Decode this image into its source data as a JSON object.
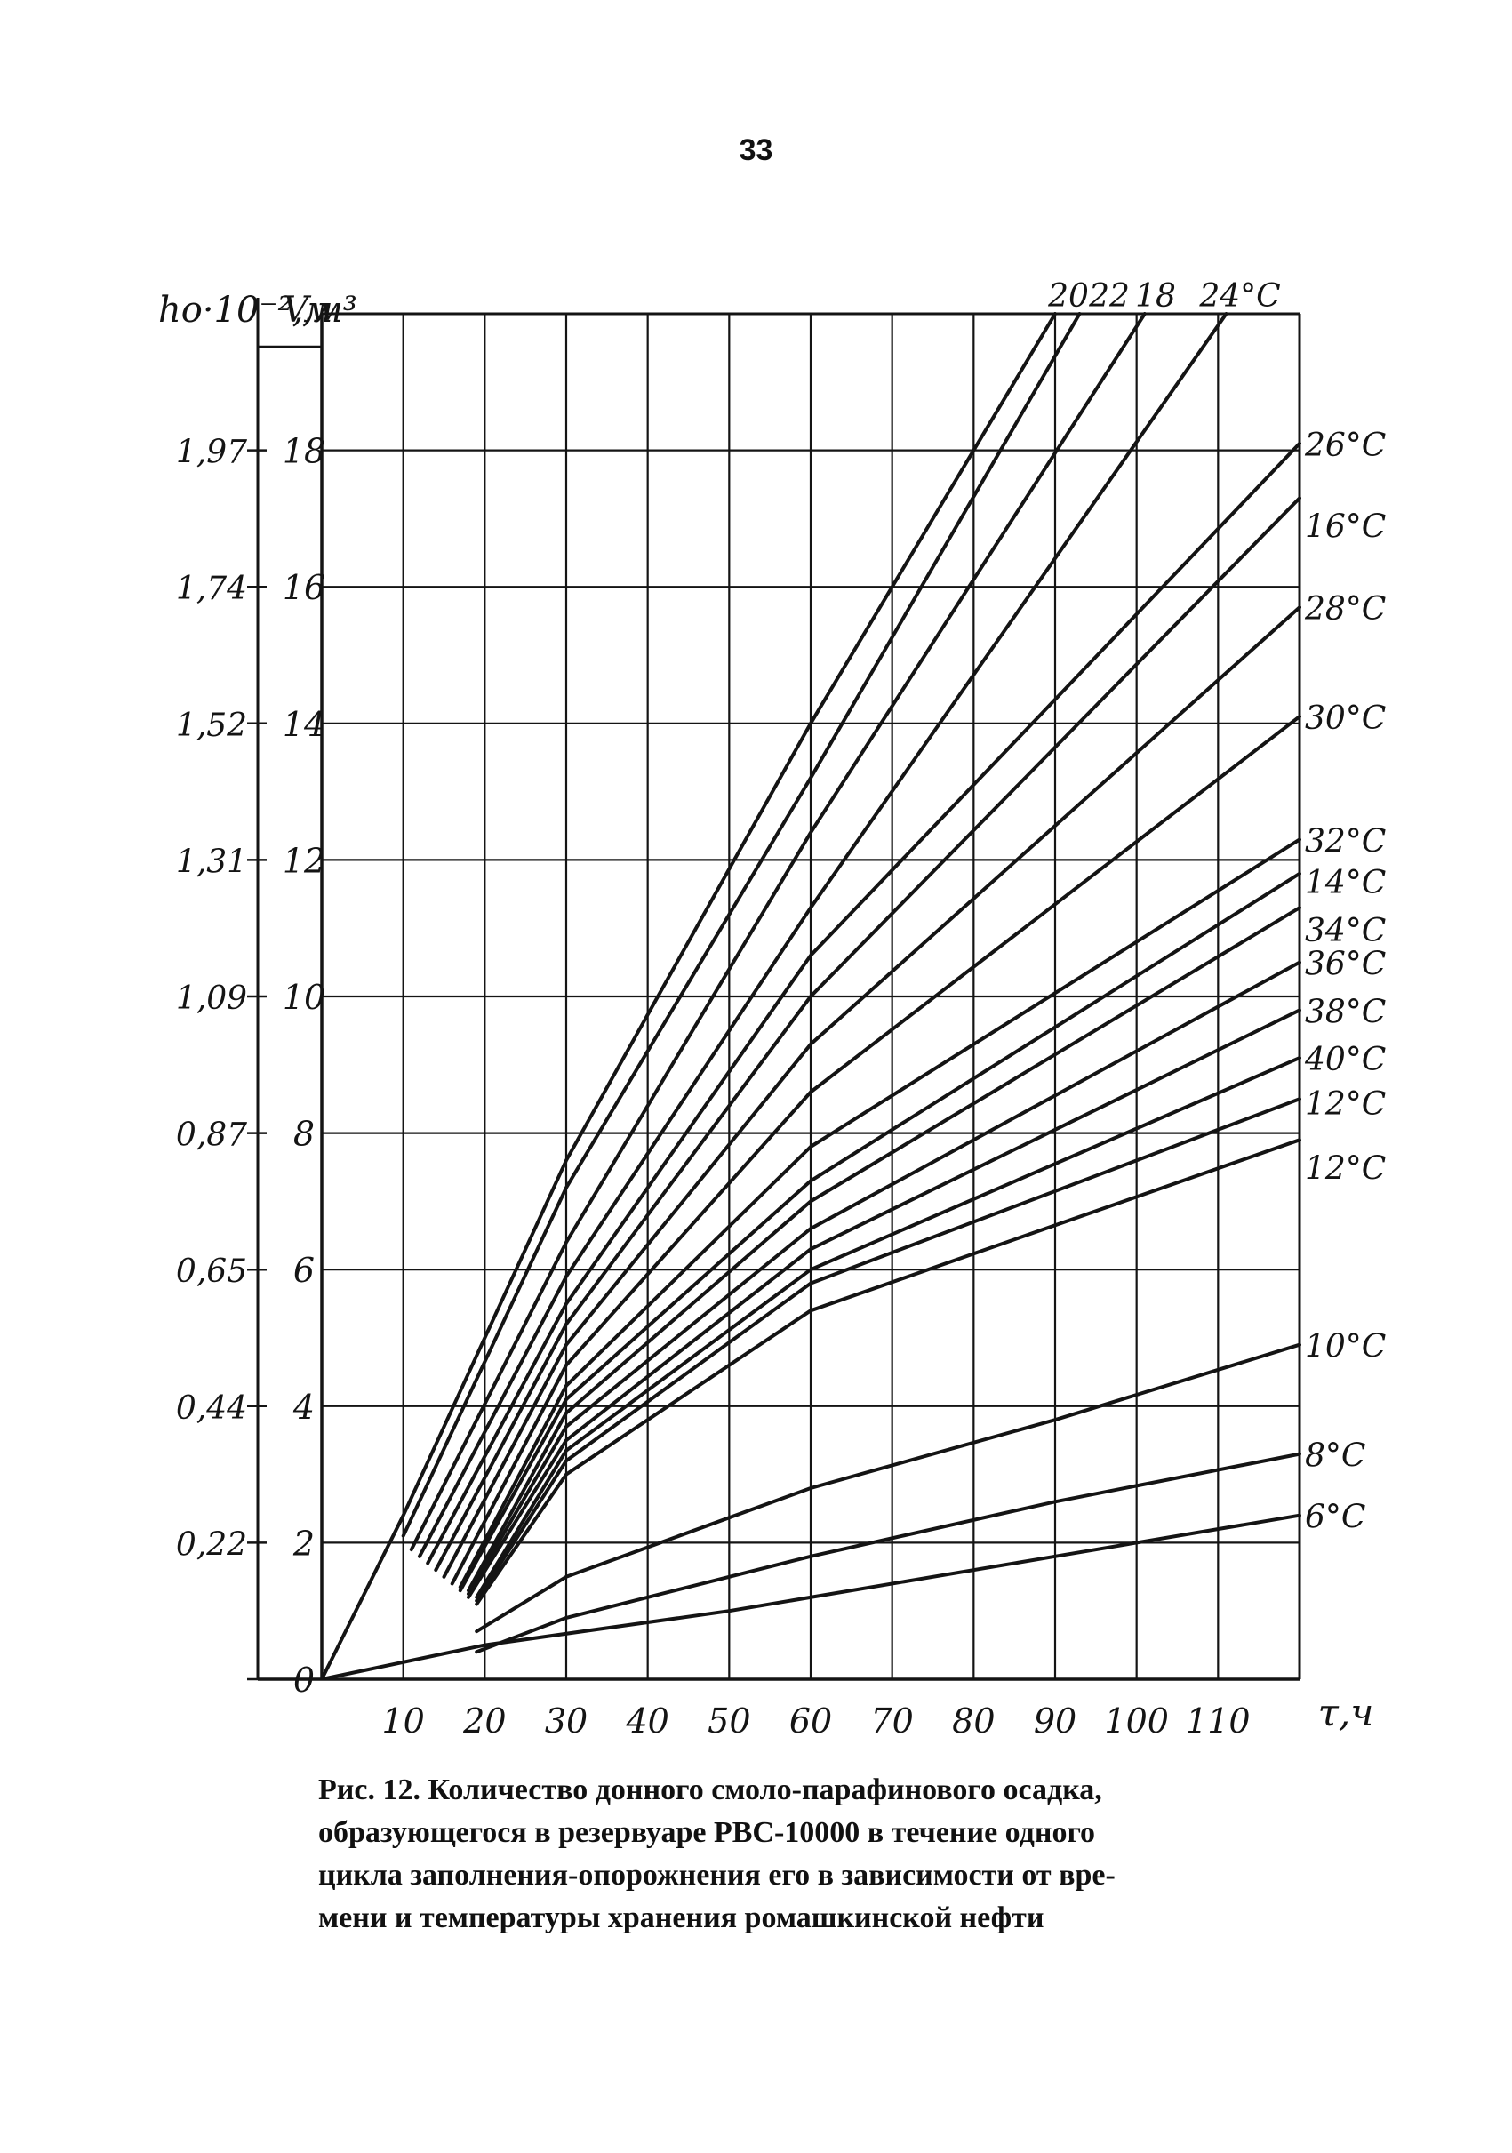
{
  "page_number": "33",
  "caption_lines": [
    "Рис. 12. Количество донного смоло-парафинового осадка,",
    "образующегося в резервуаре РВС-10000 в течение одного",
    "цикла заполнения-опорожнения его в зависимости от вре-",
    "мени и температуры хранения ромашкинской нефти"
  ],
  "chart_data": {
    "type": "line",
    "title": "",
    "xlabel": "τ,ч",
    "ylabel": "V,м³",
    "ylabel2": "hо·10⁻²,м",
    "xlim": [
      0,
      120
    ],
    "ylim": [
      0,
      20
    ],
    "grid": true,
    "x_ticks": [
      10,
      20,
      30,
      40,
      50,
      60,
      70,
      80,
      90,
      100,
      110
    ],
    "x_tick_labels": [
      "10",
      "20",
      "30",
      "40",
      "50",
      "60",
      "70",
      "80",
      "90",
      "100",
      "110"
    ],
    "y_ticks": [
      0,
      2,
      4,
      6,
      8,
      10,
      12,
      14,
      16,
      18
    ],
    "y_tick_labels": [
      "0",
      "2",
      "4",
      "6",
      "8",
      "10",
      "12",
      "14",
      "16",
      "18"
    ],
    "y2_tick_labels": [
      "",
      "0,22",
      "0,44",
      "0,65",
      "0,87",
      "1,09",
      "1,31",
      "1,52",
      "1,74",
      "1,97"
    ],
    "series": [
      {
        "name": "20",
        "x": [
          0,
          10,
          30,
          60,
          90
        ],
        "y": [
          0,
          2.4,
          7.6,
          14,
          20.0
        ]
      },
      {
        "name": "22",
        "x": [
          10,
          30,
          60,
          93
        ],
        "y": [
          2.1,
          7.2,
          13.2,
          20.0
        ]
      },
      {
        "name": "18",
        "x": [
          11,
          30,
          60,
          101
        ],
        "y": [
          1.9,
          6.4,
          12.4,
          20.0
        ]
      },
      {
        "name": "24°C",
        "x": [
          12,
          30,
          60,
          111
        ],
        "y": [
          1.8,
          5.9,
          11.3,
          20.0
        ]
      },
      {
        "name": "26°C",
        "x": [
          13,
          30,
          60,
          120
        ],
        "y": [
          1.7,
          5.5,
          10.6,
          18.1
        ]
      },
      {
        "name": "16°C",
        "x": [
          14,
          30,
          60,
          120
        ],
        "y": [
          1.6,
          5.2,
          10.0,
          17.3
        ]
      },
      {
        "name": "28°C",
        "x": [
          15,
          30,
          60,
          120
        ],
        "y": [
          1.5,
          4.9,
          9.3,
          15.7
        ]
      },
      {
        "name": "30°C",
        "x": [
          16,
          30,
          60,
          120
        ],
        "y": [
          1.4,
          4.6,
          8.6,
          14.1
        ]
      },
      {
        "name": "32°C",
        "x": [
          17,
          30,
          60,
          120
        ],
        "y": [
          1.35,
          4.3,
          7.8,
          12.3
        ]
      },
      {
        "name": "14°C",
        "x": [
          17,
          30,
          60,
          120
        ],
        "y": [
          1.3,
          4.1,
          7.3,
          11.8
        ]
      },
      {
        "name": "34°C",
        "x": [
          18,
          30,
          60,
          120
        ],
        "y": [
          1.3,
          3.9,
          7.0,
          11.3
        ]
      },
      {
        "name": "36°C",
        "x": [
          18,
          30,
          60,
          120
        ],
        "y": [
          1.25,
          3.7,
          6.6,
          10.5
        ]
      },
      {
        "name": "38°C",
        "x": [
          18,
          30,
          60,
          120
        ],
        "y": [
          1.2,
          3.5,
          6.3,
          9.8
        ]
      },
      {
        "name": "40°C",
        "x": [
          19,
          30,
          60,
          120
        ],
        "y": [
          1.2,
          3.35,
          6.0,
          9.1
        ]
      },
      {
        "name": "12°C",
        "x": [
          19,
          30,
          60,
          120
        ],
        "y": [
          1.15,
          3.2,
          5.8,
          8.5
        ]
      },
      {
        "name": "12°C",
        "x": [
          19,
          30,
          60,
          120
        ],
        "y": [
          1.1,
          3.0,
          5.4,
          7.9
        ]
      },
      {
        "name": "10°C",
        "x": [
          19,
          30,
          60,
          90,
          120
        ],
        "y": [
          0.7,
          1.5,
          2.8,
          3.8,
          4.9
        ]
      },
      {
        "name": "8°C",
        "x": [
          19,
          30,
          60,
          90,
          120
        ],
        "y": [
          0.4,
          0.9,
          1.8,
          2.6,
          3.3
        ]
      },
      {
        "name": "6°C",
        "x": [
          0,
          20,
          50,
          90,
          120
        ],
        "y": [
          0,
          0.5,
          1.0,
          1.8,
          2.4
        ]
      }
    ]
  }
}
